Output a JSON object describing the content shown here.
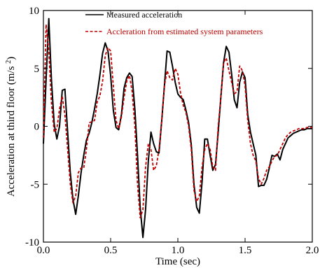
{
  "chart_data": {
    "type": "line",
    "xlabel": "Time (sec)",
    "ylabel": "Acceleration at third floor (m/s)",
    "ylabel_unit_superscript": "2",
    "xlim": [
      0.0,
      2.0
    ],
    "ylim": [
      -10,
      10
    ],
    "x_ticks": [
      "0.0",
      "0.5",
      "1.0",
      "1.5",
      "2.0"
    ],
    "y_ticks": [
      "10",
      "5",
      "0",
      "-5",
      "-10"
    ],
    "x_tick_values": [
      0.0,
      0.5,
      1.0,
      1.5,
      2.0
    ],
    "y_tick_values": [
      10,
      5,
      0,
      -5,
      -10
    ],
    "legend_position": "top",
    "grid": false,
    "series": [
      {
        "name": "Measured acceleration",
        "color": "#000000",
        "style": "solid",
        "x": [
          0.0,
          0.02,
          0.04,
          0.06,
          0.08,
          0.1,
          0.12,
          0.14,
          0.16,
          0.18,
          0.2,
          0.22,
          0.24,
          0.26,
          0.28,
          0.3,
          0.32,
          0.34,
          0.36,
          0.38,
          0.4,
          0.42,
          0.44,
          0.46,
          0.48,
          0.5,
          0.52,
          0.54,
          0.56,
          0.58,
          0.6,
          0.62,
          0.64,
          0.66,
          0.68,
          0.7,
          0.72,
          0.74,
          0.76,
          0.78,
          0.8,
          0.82,
          0.84,
          0.86,
          0.88,
          0.9,
          0.92,
          0.94,
          0.96,
          0.98,
          1.0,
          1.02,
          1.04,
          1.06,
          1.08,
          1.1,
          1.12,
          1.14,
          1.16,
          1.18,
          1.2,
          1.22,
          1.24,
          1.26,
          1.28,
          1.3,
          1.32,
          1.34,
          1.36,
          1.38,
          1.4,
          1.42,
          1.44,
          1.46,
          1.48,
          1.5,
          1.52,
          1.54,
          1.56,
          1.58,
          1.6,
          1.62,
          1.64,
          1.66,
          1.68,
          1.7,
          1.72,
          1.74,
          1.76,
          1.78,
          1.8,
          1.82,
          1.84,
          1.86,
          1.88,
          1.9,
          1.92,
          1.94,
          1.96,
          1.98,
          2.0
        ],
        "y": [
          -1.5,
          4.0,
          9.3,
          4.0,
          0.2,
          -1.1,
          0.0,
          3.1,
          3.2,
          -0.5,
          -4.0,
          -6.3,
          -7.6,
          -6.0,
          -4.0,
          -2.5,
          -1.2,
          -0.6,
          0.3,
          1.5,
          2.8,
          4.4,
          6.3,
          7.2,
          6.5,
          4.4,
          1.4,
          -0.1,
          -0.3,
          1.0,
          3.3,
          4.2,
          4.6,
          4.3,
          1.5,
          -2.5,
          -7.0,
          -9.6,
          -7.2,
          -3.0,
          -0.5,
          -1.5,
          -2.2,
          -2.3,
          0.5,
          3.5,
          6.5,
          6.4,
          5.2,
          3.8,
          2.8,
          2.5,
          2.3,
          1.4,
          0.3,
          -1.6,
          -5.0,
          -7.0,
          -7.5,
          -4.8,
          -1.1,
          -1.1,
          -2.5,
          -3.8,
          -3.3,
          -0.5,
          2.5,
          5.5,
          6.9,
          6.4,
          4.5,
          2.3,
          1.6,
          3.8,
          4.7,
          4.2,
          1.0,
          -0.5,
          -1.5,
          -2.5,
          -5.2,
          -5.1,
          -5.1,
          -4.6,
          -3.6,
          -2.5,
          -2.6,
          -2.4,
          -2.9,
          -2.0,
          -1.5,
          -1.0,
          -0.8,
          -0.6,
          -0.5,
          -0.4,
          -0.3,
          -0.3,
          -0.2,
          -0.2,
          -0.2
        ]
      },
      {
        "name": "Accleration from estimated system parameters",
        "color": "#c00000",
        "style": "dashed",
        "x": [
          0.0,
          0.02,
          0.04,
          0.06,
          0.08,
          0.1,
          0.12,
          0.14,
          0.16,
          0.18,
          0.2,
          0.22,
          0.24,
          0.26,
          0.28,
          0.3,
          0.32,
          0.34,
          0.36,
          0.38,
          0.4,
          0.42,
          0.44,
          0.46,
          0.48,
          0.5,
          0.52,
          0.54,
          0.56,
          0.58,
          0.6,
          0.62,
          0.64,
          0.66,
          0.68,
          0.7,
          0.72,
          0.74,
          0.76,
          0.78,
          0.8,
          0.82,
          0.84,
          0.86,
          0.88,
          0.9,
          0.92,
          0.94,
          0.96,
          0.98,
          1.0,
          1.02,
          1.04,
          1.06,
          1.08,
          1.1,
          1.12,
          1.14,
          1.16,
          1.18,
          1.2,
          1.22,
          1.24,
          1.26,
          1.28,
          1.3,
          1.32,
          1.34,
          1.36,
          1.38,
          1.4,
          1.42,
          1.44,
          1.46,
          1.48,
          1.5,
          1.52,
          1.54,
          1.56,
          1.58,
          1.6,
          1.62,
          1.64,
          1.66,
          1.68,
          1.7,
          1.72,
          1.74,
          1.76,
          1.78,
          1.8,
          1.82,
          1.84,
          1.86,
          1.88,
          1.9,
          1.92,
          1.94,
          1.96,
          1.98,
          2.0
        ],
        "y": [
          -1.0,
          8.8,
          6.5,
          2.0,
          -0.5,
          -0.2,
          1.5,
          2.6,
          1.0,
          -2.0,
          -5.0,
          -6.6,
          -6.0,
          -4.0,
          -3.6,
          -3.6,
          -2.0,
          0.3,
          0.4,
          0.5,
          2.1,
          2.6,
          3.9,
          6.1,
          6.8,
          6.5,
          3.5,
          0.5,
          -0.2,
          0.8,
          2.5,
          3.9,
          4.4,
          3.0,
          0.0,
          -5.0,
          -7.9,
          -7.2,
          -3.5,
          -1.5,
          -2.0,
          -3.8,
          -3.4,
          -2.0,
          0.5,
          3.5,
          4.8,
          4.2,
          4.0,
          5.0,
          4.5,
          2.9,
          1.8,
          1.2,
          0.0,
          -2.0,
          -5.5,
          -6.5,
          -6.0,
          -3.5,
          -2.0,
          -1.5,
          -2.0,
          -3.5,
          -3.8,
          0.0,
          2.5,
          5.5,
          5.9,
          4.8,
          3.8,
          2.8,
          3.0,
          5.2,
          4.8,
          3.5,
          0.5,
          -1.5,
          -2.5,
          -3.0,
          -4.5,
          -5.0,
          -4.5,
          -3.8,
          -3.5,
          -3.0,
          -2.6,
          -2.5,
          -2.0,
          -1.5,
          -1.0,
          -0.7,
          -0.5,
          -0.4,
          -0.3,
          -0.2,
          -0.2,
          -0.2,
          -0.1,
          -0.1,
          -0.1
        ]
      }
    ]
  }
}
